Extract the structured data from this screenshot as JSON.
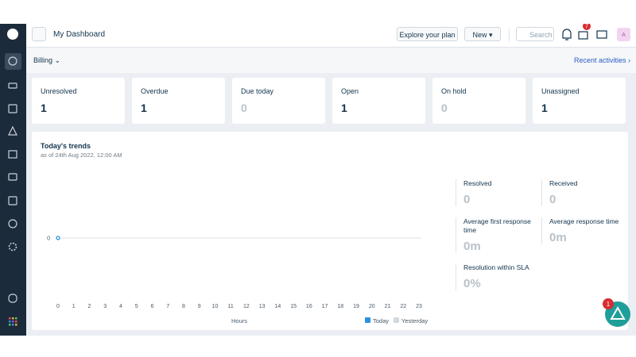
{
  "header": {
    "title": "My Dashboard",
    "explore": "Explore your plan",
    "new": "New",
    "search": "Search",
    "gift_badge": 7,
    "avatar": "A"
  },
  "subheader": {
    "filter": "Billing",
    "link": "Recent activities"
  },
  "cards": [
    {
      "label": "Unresolved",
      "value": 1
    },
    {
      "label": "Overdue",
      "value": 1
    },
    {
      "label": "Due today",
      "value": 0
    },
    {
      "label": "Open",
      "value": 1
    },
    {
      "label": "On hold",
      "value": 0
    },
    {
      "label": "Unassigned",
      "value": 1
    }
  ],
  "trends": {
    "title": "Today's trends",
    "subtitle": "as of 24th Aug 2022, 12:00 AM",
    "stats": [
      {
        "label": "Resolved",
        "value": "0"
      },
      {
        "label": "Received",
        "value": "0"
      },
      {
        "label": "Average first response time",
        "value": "0m"
      },
      {
        "label": "Average response time",
        "value": "0m"
      },
      {
        "label": "Resolution within SLA",
        "value": "0%"
      }
    ],
    "chart_data": {
      "type": "line",
      "xlabel": "Hours",
      "x": [
        0,
        1,
        2,
        3,
        4,
        5,
        6,
        7,
        8,
        9,
        10,
        11,
        12,
        13,
        14,
        15,
        16,
        17,
        18,
        19,
        20,
        21,
        22,
        23
      ],
      "xlim": [
        0,
        23
      ],
      "ylim": [
        -1,
        1
      ],
      "yticks": [
        0
      ],
      "grid": true,
      "series": [
        {
          "name": "Today",
          "color": "#2c92e0",
          "values": [
            0,
            null,
            null,
            null,
            null,
            null,
            null,
            null,
            null,
            null,
            null,
            null,
            null,
            null,
            null,
            null,
            null,
            null,
            null,
            null,
            null,
            null,
            null,
            null
          ]
        },
        {
          "name": "Yesterday",
          "color": "#d3d9df",
          "values": [
            null,
            null,
            null,
            null,
            null,
            null,
            null,
            null,
            null,
            null,
            null,
            null,
            null,
            null,
            null,
            null,
            null,
            null,
            null,
            null,
            null,
            null,
            null,
            null
          ]
        }
      ]
    }
  },
  "help_badge": 1
}
